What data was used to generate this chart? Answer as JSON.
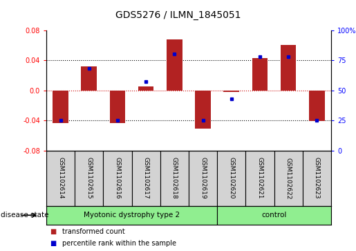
{
  "title": "GDS5276 / ILMN_1845051",
  "samples": [
    "GSM1102614",
    "GSM1102615",
    "GSM1102616",
    "GSM1102617",
    "GSM1102618",
    "GSM1102619",
    "GSM1102620",
    "GSM1102621",
    "GSM1102622",
    "GSM1102623"
  ],
  "transformed_count": [
    -0.043,
    0.032,
    -0.043,
    0.005,
    0.068,
    -0.051,
    -0.002,
    0.043,
    0.06,
    -0.041
  ],
  "percentile_rank": [
    25,
    68,
    25,
    57,
    80,
    25,
    43,
    78,
    78,
    25
  ],
  "disease_groups": [
    {
      "label": "Myotonic dystrophy type 2",
      "start": 0,
      "end": 6
    },
    {
      "label": "control",
      "start": 6,
      "end": 10
    }
  ],
  "bar_color": "#B22222",
  "dot_color": "#0000CD",
  "ylim": [
    -0.08,
    0.08
  ],
  "yticks_left": [
    -0.08,
    -0.04,
    0.0,
    0.04,
    0.08
  ],
  "yticks_right": [
    0,
    25,
    50,
    75,
    100
  ],
  "label_bg_color": "#D3D3D3",
  "green_color": "#90EE90",
  "disease_state_label": "disease state",
  "legend_items": [
    {
      "label": "transformed count",
      "color": "#B22222"
    },
    {
      "label": "percentile rank within the sample",
      "color": "#0000CD"
    }
  ]
}
